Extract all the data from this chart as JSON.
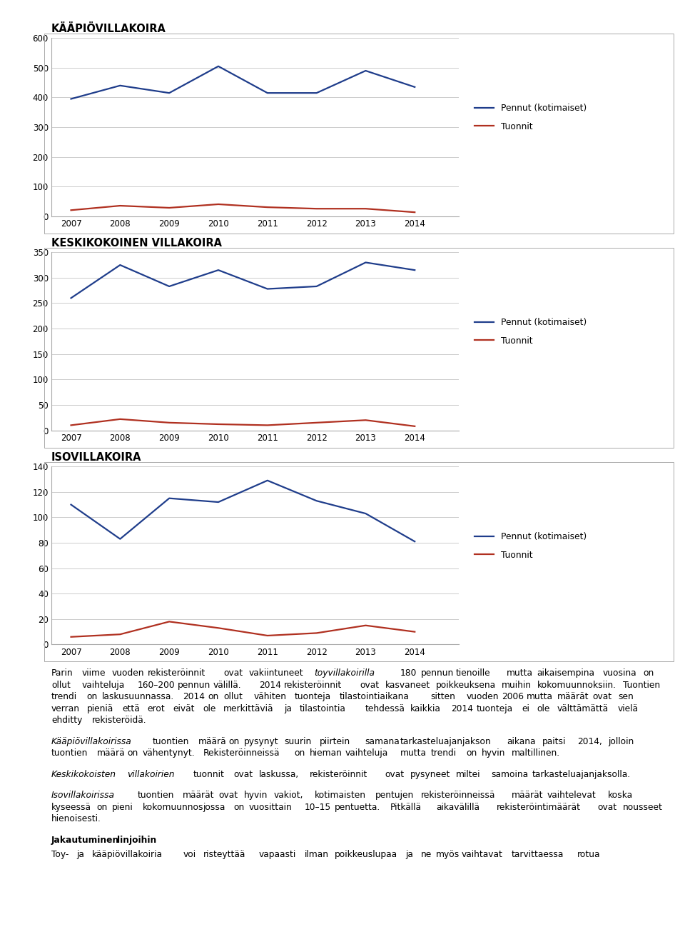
{
  "years": [
    2007,
    2008,
    2009,
    2010,
    2011,
    2012,
    2013,
    2014
  ],
  "chart1": {
    "title": "KÄÄPIÖVILLAKOIRA",
    "pennut": [
      395,
      440,
      415,
      505,
      415,
      415,
      490,
      435
    ],
    "tuonnit": [
      20,
      35,
      28,
      40,
      30,
      25,
      25,
      13
    ],
    "ylim": [
      0,
      600
    ],
    "yticks": [
      0,
      100,
      200,
      300,
      400,
      500,
      600
    ]
  },
  "chart2": {
    "title": "KESKIKOKOINEN VILLAKOIRA",
    "pennut": [
      260,
      325,
      283,
      315,
      278,
      283,
      330,
      315
    ],
    "tuonnit": [
      10,
      22,
      15,
      12,
      10,
      15,
      20,
      8
    ],
    "ylim": [
      0,
      350
    ],
    "yticks": [
      0,
      50,
      100,
      150,
      200,
      250,
      300,
      350
    ]
  },
  "chart3": {
    "title": "ISOVILLAKOIRA",
    "pennut": [
      110,
      83,
      115,
      112,
      129,
      113,
      103,
      81
    ],
    "tuonnit": [
      6,
      8,
      18,
      13,
      7,
      9,
      15,
      10
    ],
    "ylim": [
      0,
      140
    ],
    "yticks": [
      0,
      20,
      40,
      60,
      80,
      100,
      120,
      140
    ]
  },
  "line_color_blue": "#1F3D8B",
  "line_color_red": "#B03020",
  "legend_pennut": "Pennut (kotimaiset)",
  "legend_tuonnit": "Tuonnit",
  "para0_before": "Parin viime vuoden rekisteröinnit ovat vakiintuneet ",
  "para0_italic": "toyvillakoirilla",
  "para0_after": " 180 pennun tienoille mutta aikaisempina vuosina on ollut vaihteluja 160–200 pennun välillä. 2014 rekisteröinnit ovat kasvaneet poikkeuksena muihin kokomuunnoksiin. Tuontien trendi on laskusuunnassa. 2014 on ollut vähiten tuonteja tilastointiaikana sitten vuoden 2006 mutta määrät ovat sen verran pieniä että erot eivät ole merkittäviä ja tilastointia tehdessä kaikkia 2014 tuonteja ei ole välttämättä vielä ehditty rekisteröidä.",
  "para1_italic": "Kääpiövillakoirissa",
  "para1_after": " tuontien määrä on pysynyt suurin piirtein samana tarkasteluajanjakson aikana paitsi 2014, jolloin tuontien määrä on vähentynyt. Rekisteröinneissä on hieman vaihteluja mutta trendi on hyvin maltillinen.",
  "para2_italic": "Keskikokoisten villakoirien",
  "para2_after": " tuonnit ovat laskussa, rekisteröinnit ovat pysyneet miltei samoina tarkasteluajanjaksolla.",
  "para3_italic": "Isovillakoirissa",
  "para3_after": " tuontien määrät ovat hyvin vakiot, kotimaisten pentujen rekisteröinneissä määrät vaihtelevat koska kyseessä on pieni kokomuunnos jossa on vuosittain 10–15 pentuetta. Pitkällä aikavälillä rekisteröintimäärät ovat nousseet hienoisesti.",
  "para4_bold": "Jakautuminen linjoihin",
  "para5_text": "Toy- ja kääpiövillakoiria voi risteyttää vapaasti ilman poikkeuslupaa ja ne myös vaihtavat tarvittaessa rotua"
}
